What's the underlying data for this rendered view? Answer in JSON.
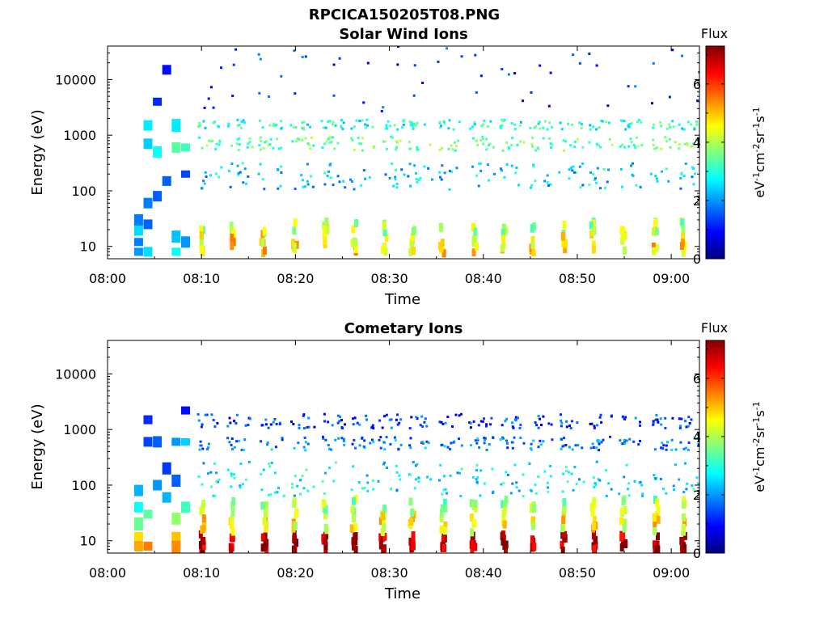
{
  "figure_title": "RPCICA150205T08.PNG",
  "colors": {
    "colormap": [
      "#00007f",
      "#0000ff",
      "#007fff",
      "#00ffff",
      "#7fff7f",
      "#ffff00",
      "#ff7f00",
      "#ff0000",
      "#7f0000"
    ],
    "axis": "#000000",
    "background": "#ffffff"
  },
  "chart_data": [
    {
      "type": "heatmap",
      "title": "Solar Wind Ions",
      "xlabel": "Time",
      "ylabel": "Energy (eV)",
      "x_range": [
        "08:00",
        "09:03"
      ],
      "x_ticks": [
        "08:00",
        "08:10",
        "08:20",
        "08:30",
        "08:40",
        "08:50",
        "09:00"
      ],
      "y_scale": "log",
      "y_range": [
        6,
        40000
      ],
      "y_ticks": [
        "10",
        "100",
        "1000",
        "10000"
      ],
      "colorbar": {
        "label": "Flux",
        "unit": "eV-1cm-2sr-1s-1",
        "range": [
          0,
          7.3
        ],
        "ticks": [
          "0",
          "2",
          "4",
          "6"
        ]
      },
      "sweep_period_minutes": 3.2,
      "sweeps_start": "08:10",
      "early_interval": {
        "start": "08:03",
        "end": "08:08",
        "cells": [
          {
            "t": "08:03",
            "e": 8,
            "v": 2.0
          },
          {
            "t": "08:03",
            "e": 12,
            "v": 1.8
          },
          {
            "t": "08:03",
            "e": 20,
            "v": 2.5
          },
          {
            "t": "08:03",
            "e": 30,
            "v": 1.8
          },
          {
            "t": "08:04",
            "e": 8,
            "v": 2.5
          },
          {
            "t": "08:04",
            "e": 25,
            "v": 1.6
          },
          {
            "t": "08:04",
            "e": 60,
            "v": 1.8
          },
          {
            "t": "08:04",
            "e": 700,
            "v": 2.4
          },
          {
            "t": "08:04",
            "e": 1500,
            "v": 2.6
          },
          {
            "t": "08:05",
            "e": 80,
            "v": 1.6
          },
          {
            "t": "08:05",
            "e": 500,
            "v": 2.8
          },
          {
            "t": "08:05",
            "e": 4000,
            "v": 1.2
          },
          {
            "t": "08:06",
            "e": 150,
            "v": 1.6
          },
          {
            "t": "08:06",
            "e": 15000,
            "v": 1.0
          },
          {
            "t": "08:07",
            "e": 8,
            "v": 2.8
          },
          {
            "t": "08:07",
            "e": 15,
            "v": 2.3
          },
          {
            "t": "08:07",
            "e": 600,
            "v": 3.4
          },
          {
            "t": "08:07",
            "e": 1500,
            "v": 2.6
          },
          {
            "t": "08:08",
            "e": 12,
            "v": 2.0
          },
          {
            "t": "08:08",
            "e": 200,
            "v": 1.4
          },
          {
            "t": "08:08",
            "e": 600,
            "v": 3.2
          }
        ]
      },
      "sweep_bands": [
        {
          "e_min": 8,
          "e_max": 30,
          "v": 4.0
        },
        {
          "e_min": 100,
          "e_max": 300,
          "v": 2.4
        },
        {
          "e_min": 500,
          "e_max": 900,
          "v": 3.5
        },
        {
          "e_min": 1200,
          "e_max": 1800,
          "v": 3.0
        },
        {
          "e_min": 2500,
          "e_max": 40000,
          "v": 1.2
        }
      ]
    },
    {
      "type": "heatmap",
      "title": "Cometary Ions",
      "xlabel": "Time",
      "ylabel": "Energy (eV)",
      "x_range": [
        "08:00",
        "09:03"
      ],
      "x_ticks": [
        "08:00",
        "08:10",
        "08:20",
        "08:30",
        "08:40",
        "08:50",
        "09:00"
      ],
      "y_scale": "log",
      "y_range": [
        6,
        40000
      ],
      "y_ticks": [
        "10",
        "100",
        "1000",
        "10000"
      ],
      "colorbar": {
        "label": "Flux",
        "unit": "eV-1cm-2sr-1s-1",
        "range": [
          0,
          7.3
        ],
        "ticks": [
          "0",
          "2",
          "4",
          "6"
        ]
      },
      "sweep_period_minutes": 3.2,
      "sweeps_start": "08:10",
      "early_interval": {
        "start": "08:03",
        "end": "08:08",
        "cells": [
          {
            "t": "08:03",
            "e": 8,
            "v": 5.2
          },
          {
            "t": "08:03",
            "e": 12,
            "v": 4.8
          },
          {
            "t": "08:03",
            "e": 20,
            "v": 3.5
          },
          {
            "t": "08:03",
            "e": 40,
            "v": 2.8
          },
          {
            "t": "08:03",
            "e": 80,
            "v": 2.2
          },
          {
            "t": "08:04",
            "e": 8,
            "v": 5.5
          },
          {
            "t": "08:04",
            "e": 30,
            "v": 3.4
          },
          {
            "t": "08:04",
            "e": 600,
            "v": 1.4
          },
          {
            "t": "08:04",
            "e": 1500,
            "v": 1.2
          },
          {
            "t": "08:05",
            "e": 100,
            "v": 2.0
          },
          {
            "t": "08:05",
            "e": 600,
            "v": 1.6
          },
          {
            "t": "08:06",
            "e": 200,
            "v": 1.3
          },
          {
            "t": "08:06",
            "e": 60,
            "v": 2.2
          },
          {
            "t": "08:07",
            "e": 8,
            "v": 5.4
          },
          {
            "t": "08:07",
            "e": 12,
            "v": 5.0
          },
          {
            "t": "08:07",
            "e": 25,
            "v": 3.8
          },
          {
            "t": "08:07",
            "e": 120,
            "v": 1.6
          },
          {
            "t": "08:07",
            "e": 600,
            "v": 2.0
          },
          {
            "t": "08:08",
            "e": 40,
            "v": 3.2
          },
          {
            "t": "08:08",
            "e": 600,
            "v": 2.4
          },
          {
            "t": "08:08",
            "e": 2200,
            "v": 1.0
          }
        ]
      },
      "sweep_bands": [
        {
          "e_min": 7,
          "e_max": 14,
          "v": 6.2
        },
        {
          "e_min": 15,
          "e_max": 60,
          "v": 3.8
        },
        {
          "e_min": 60,
          "e_max": 250,
          "v": 2.6
        },
        {
          "e_min": 400,
          "e_max": 700,
          "v": 1.8
        },
        {
          "e_min": 1000,
          "e_max": 1800,
          "v": 1.3
        }
      ]
    }
  ]
}
